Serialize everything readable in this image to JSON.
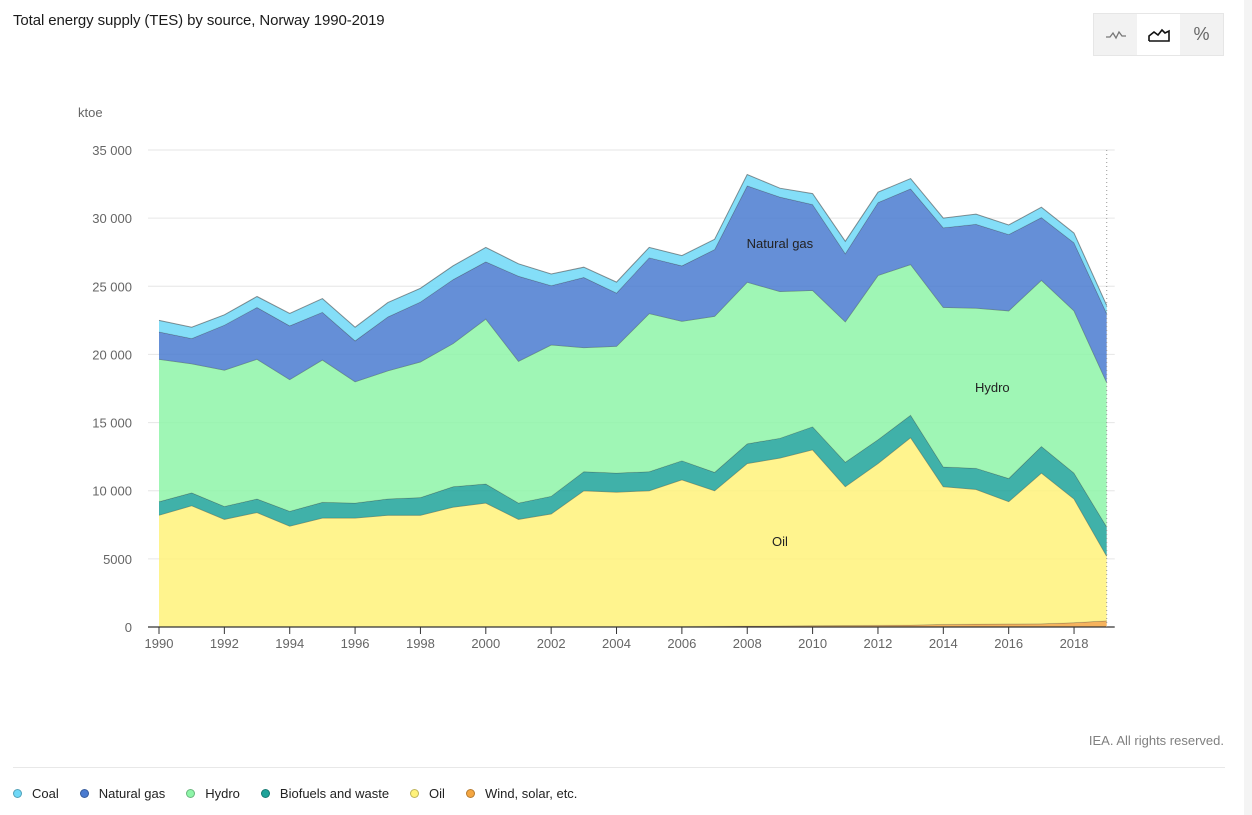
{
  "title": "Total energy supply (TES) by source, Norway 1990-2019",
  "toggle": {
    "buttons": [
      {
        "name": "line-chart-button",
        "icon": "line-chart-icon",
        "glyph": "~",
        "active": false
      },
      {
        "name": "area-chart-button",
        "icon": "area-chart-icon",
        "glyph": "area",
        "active": true
      },
      {
        "name": "percent-button",
        "icon": "percent-icon",
        "glyph": "%",
        "active": false
      }
    ]
  },
  "credit": "IEA. All rights reserved.",
  "legend": [
    {
      "label": "Coal",
      "color": "#6fd8f7"
    },
    {
      "label": "Natural gas",
      "color": "#4a7bd0"
    },
    {
      "label": "Hydro",
      "color": "#8ef5a8"
    },
    {
      "label": "Biofuels and waste",
      "color": "#1fa39a"
    },
    {
      "label": "Oil",
      "color": "#fff27a"
    },
    {
      "label": "Wind, solar, etc.",
      "color": "#f4a641"
    }
  ],
  "chart_data": {
    "type": "area",
    "stacked": true,
    "title": "Total energy supply (TES) by source, Norway 1990-2019",
    "ylabel": "ktoe",
    "xlabel": "",
    "ylim": [
      0,
      35000
    ],
    "yticks": [
      0,
      5000,
      10000,
      15000,
      20000,
      25000,
      30000,
      35000
    ],
    "ytick_labels": [
      "0",
      "5000",
      "10 000",
      "15 000",
      "20 000",
      "25 000",
      "30 000",
      "35 000"
    ],
    "xtick_labels": [
      "1990",
      "1992",
      "1994",
      "1996",
      "1998",
      "2000",
      "2002",
      "2004",
      "2006",
      "2008",
      "2010",
      "2012",
      "2014",
      "2016",
      "2018"
    ],
    "grid": true,
    "legend_position": "bottom-left",
    "x": [
      1990,
      1991,
      1992,
      1993,
      1994,
      1995,
      1996,
      1997,
      1998,
      1999,
      2000,
      2001,
      2002,
      2003,
      2004,
      2005,
      2006,
      2007,
      2008,
      2009,
      2010,
      2011,
      2012,
      2013,
      2014,
      2015,
      2016,
      2017,
      2018,
      2019
    ],
    "series": [
      {
        "name": "Wind, solar, etc.",
        "color": "#f4a641",
        "values": [
          0,
          0,
          0,
          0,
          0,
          0,
          0,
          0,
          0,
          0,
          0,
          0,
          0,
          0,
          10,
          20,
          40,
          60,
          70,
          80,
          100,
          110,
          130,
          150,
          190,
          220,
          230,
          240,
          320,
          460
        ]
      },
      {
        "name": "Oil",
        "color": "#fff27a",
        "values": [
          8200,
          8900,
          7900,
          8400,
          7400,
          8000,
          8000,
          8200,
          8200,
          8800,
          9100,
          7900,
          8300,
          10000,
          9890,
          9980,
          10760,
          9940,
          11930,
          12320,
          12900,
          10190,
          11870,
          13750,
          10110,
          9880,
          8970,
          11060,
          9080,
          4740
        ]
      },
      {
        "name": "Biofuels and waste",
        "color": "#1fa39a",
        "values": [
          1000,
          950,
          950,
          1000,
          1100,
          1150,
          1100,
          1200,
          1300,
          1500,
          1400,
          1200,
          1300,
          1400,
          1400,
          1400,
          1400,
          1350,
          1450,
          1450,
          1700,
          1800,
          1750,
          1650,
          1450,
          1550,
          1700,
          1950,
          1900,
          2150
        ]
      },
      {
        "name": "Hydro",
        "color": "#8ef5a8",
        "values": [
          10450,
          9470,
          10000,
          10250,
          9650,
          10450,
          8900,
          9400,
          9950,
          10500,
          12100,
          10400,
          11100,
          9100,
          9300,
          11600,
          10240,
          11450,
          11850,
          10770,
          10000,
          10300,
          12050,
          11050,
          11700,
          11750,
          12300,
          12200,
          11900,
          10600
        ]
      },
      {
        "name": "Natural gas",
        "color": "#4a7bd0",
        "values": [
          2000,
          1850,
          3300,
          3800,
          3950,
          3500,
          3000,
          3950,
          4400,
          4700,
          4200,
          6250,
          4350,
          5150,
          3910,
          4100,
          4060,
          4900,
          7070,
          6930,
          6300,
          5000,
          5350,
          5550,
          5850,
          6150,
          5600,
          4600,
          5000,
          5050
        ]
      },
      {
        "name": "Coal",
        "color": "#6fd8f7",
        "values": [
          850,
          830,
          760,
          800,
          900,
          1000,
          1000,
          1050,
          1000,
          1000,
          1050,
          900,
          850,
          750,
          800,
          750,
          750,
          750,
          830,
          650,
          800,
          900,
          750,
          750,
          700,
          750,
          700,
          750,
          700,
          600
        ]
      }
    ],
    "annotations": [
      {
        "text": "Natural gas",
        "series": "Natural gas",
        "x": 2009
      },
      {
        "text": "Hydro",
        "series": "Hydro",
        "x": 2015.5
      },
      {
        "text": "Oil",
        "series": "Oil",
        "x": 2009
      }
    ]
  }
}
